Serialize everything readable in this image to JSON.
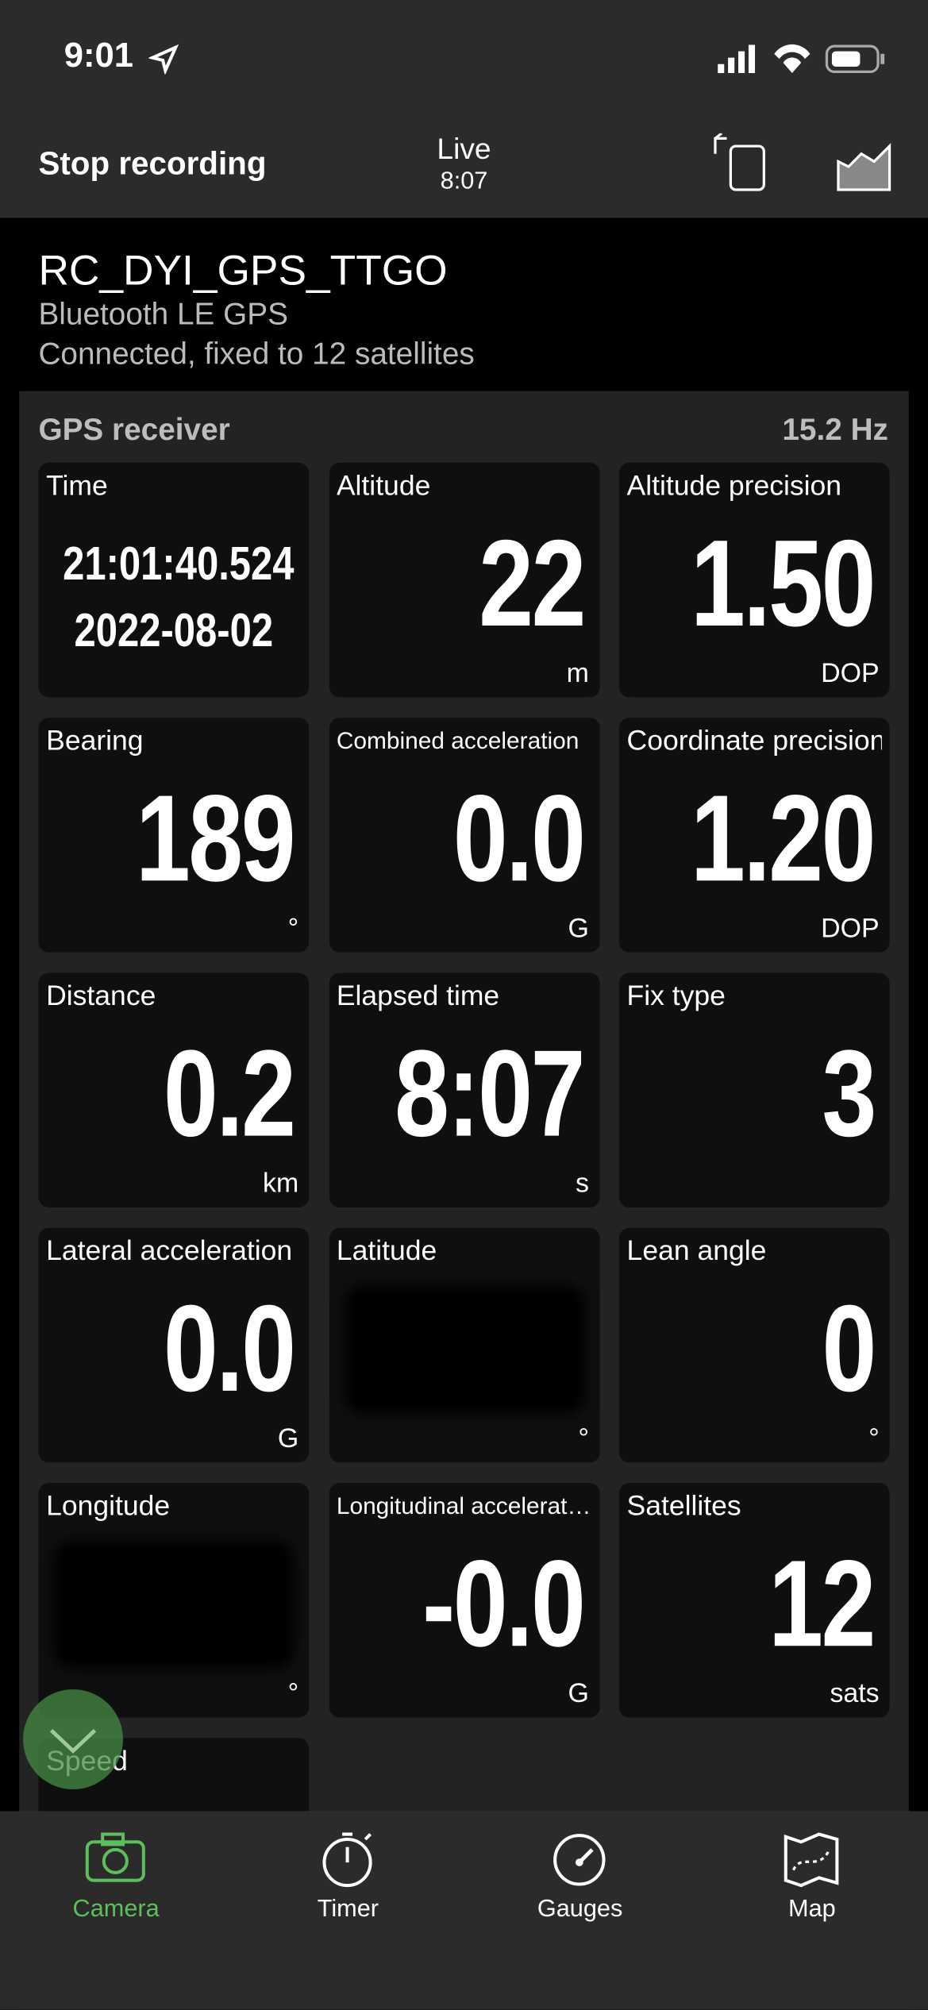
{
  "status_bar": {
    "time": "9:01"
  },
  "nav": {
    "left": "Stop recording",
    "title": "Live",
    "subtitle": "8:07"
  },
  "device": {
    "name": "RC_DYI_GPS_TTGO",
    "type": "Bluetooth LE GPS",
    "status": "Connected, fixed to 12 satellites"
  },
  "panel": {
    "title": "GPS receiver",
    "rate": "15.2 Hz"
  },
  "tiles": [
    {
      "label": "Time",
      "lines": [
        "21:01:40.524",
        "2022-08-02"
      ]
    },
    {
      "label": "Altitude",
      "value": "22",
      "unit": "m"
    },
    {
      "label": "Altitude precision",
      "value": "1.50",
      "unit": "DOP"
    },
    {
      "label": "Bearing",
      "value": "189",
      "unit": "°"
    },
    {
      "label": "Combined acceleration",
      "value": "0.0",
      "unit": "G"
    },
    {
      "label": "Coordinate precision",
      "value": "1.20",
      "unit": "DOP"
    },
    {
      "label": "Distance",
      "value": "0.2",
      "unit": "km"
    },
    {
      "label": "Elapsed time",
      "value": "8:07",
      "unit": "s"
    },
    {
      "label": "Fix type",
      "value": "3"
    },
    {
      "label": "Lateral acceleration",
      "value": "0.0",
      "unit": "G"
    },
    {
      "label": "Latitude",
      "redacted": true,
      "unit": "°"
    },
    {
      "label": "Lean angle",
      "value": "0",
      "unit": "°"
    },
    {
      "label": "Longitude",
      "redacted": true,
      "unit": "°"
    },
    {
      "label": "Longitudinal accelerat…",
      "value": "-0.0",
      "unit": "G"
    },
    {
      "label": "Satellites",
      "value": "12",
      "unit": "sats"
    },
    {
      "label": "Speed"
    }
  ],
  "tabs": [
    {
      "label": "Camera",
      "active": true
    },
    {
      "label": "Timer"
    },
    {
      "label": "Gauges"
    },
    {
      "label": "Map"
    }
  ]
}
